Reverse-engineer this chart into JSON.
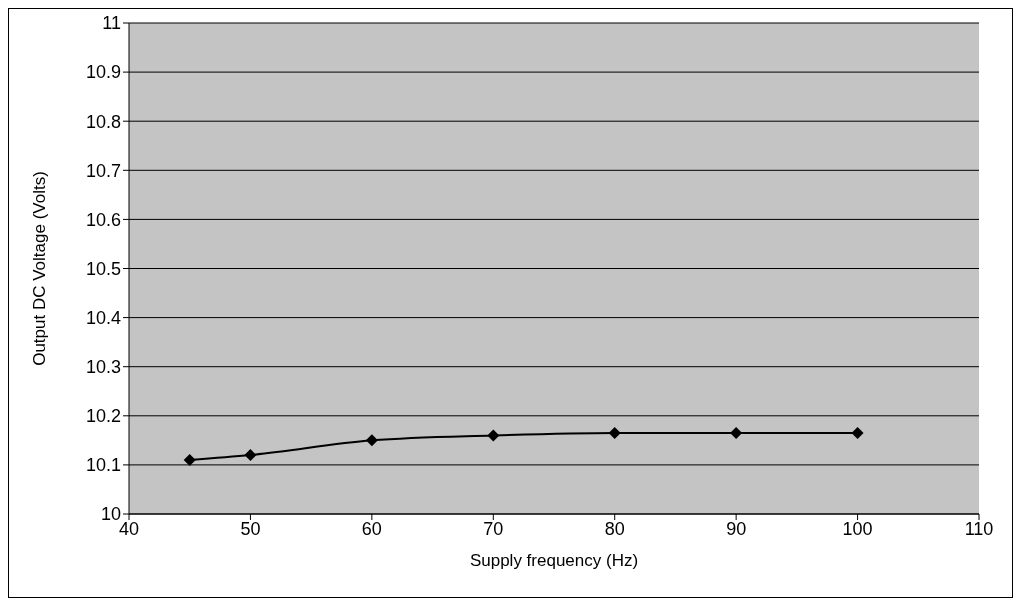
{
  "chart_data": {
    "type": "line",
    "xlabel": "Supply frequency (Hz)",
    "ylabel": "Output DC Voltage (Volts)",
    "x": [
      45,
      50,
      60,
      70,
      80,
      90,
      100
    ],
    "series": [
      {
        "color": "#000000",
        "values": [
          10.11,
          10.12,
          10.15,
          10.16,
          10.165,
          10.165,
          10.165
        ]
      }
    ],
    "xlim": [
      40,
      110
    ],
    "xticks": [
      40,
      50,
      60,
      70,
      80,
      90,
      100,
      110
    ],
    "ylim": [
      10,
      11
    ],
    "yticks": [
      10,
      10.1,
      10.2,
      10.3,
      10.4,
      10.5,
      10.6,
      10.7,
      10.8,
      10.9,
      11
    ],
    "grid": "y",
    "marker": "diamond",
    "line_style": "solid",
    "legend": false
  }
}
